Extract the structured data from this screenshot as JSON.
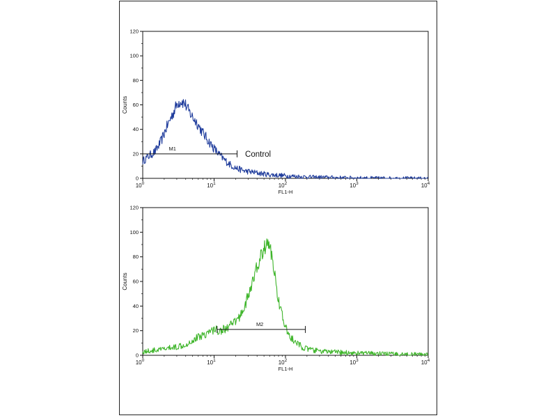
{
  "chart_data": [
    {
      "type": "line",
      "title": "",
      "xlabel": "FL1-H",
      "ylabel": "Counts",
      "x_scale": "log",
      "xlim": [
        1,
        10000
      ],
      "ylim": [
        0,
        120
      ],
      "x_tick_labels": [
        {
          "value": 1,
          "base": "10",
          "exp": "0"
        },
        {
          "value": 10,
          "base": "10",
          "exp": "1"
        },
        {
          "value": 100,
          "base": "10",
          "exp": "2"
        },
        {
          "value": 1000,
          "base": "10",
          "exp": "3"
        },
        {
          "value": 10000,
          "base": "10",
          "exp": "4"
        }
      ],
      "y_ticks": [
        0,
        20,
        40,
        60,
        80,
        100,
        120
      ],
      "grid": false,
      "legend": "none",
      "color": "#1f3c9c",
      "series": [
        {
          "name": "Control",
          "x": [
            1,
            1.2,
            1.5,
            1.8,
            2.1,
            2.5,
            2.8,
            3.1,
            3.5,
            3.9,
            4.3,
            5,
            5.8,
            6.8,
            8,
            9.5,
            11.5,
            14,
            17,
            21,
            27,
            35,
            45,
            60,
            80,
            110,
            150,
            220,
            350,
            600,
            1000,
            2000,
            4000,
            10000
          ],
          "y": [
            14,
            18,
            22,
            30,
            40,
            50,
            56,
            62,
            63,
            61,
            56,
            50,
            45,
            38,
            32,
            26,
            20,
            15,
            11,
            8,
            6,
            5,
            4,
            3,
            2.5,
            2,
            1.5,
            1,
            0.8,
            0.5,
            0.3,
            0.2,
            0.1,
            0
          ]
        }
      ],
      "annotations": [
        {
          "label": "M1",
          "x_start": 1,
          "x_end": 21,
          "y": 20
        },
        {
          "label": "Control",
          "x": 26,
          "y": 20
        }
      ]
    },
    {
      "type": "line",
      "title": "",
      "xlabel": "FL1-H",
      "ylabel": "Counts",
      "x_scale": "log",
      "xlim": [
        1,
        10000
      ],
      "ylim": [
        0,
        120
      ],
      "x_tick_labels": [
        {
          "value": 1,
          "base": "10",
          "exp": "0"
        },
        {
          "value": 10,
          "base": "10",
          "exp": "1"
        },
        {
          "value": 100,
          "base": "10",
          "exp": "2"
        },
        {
          "value": 1000,
          "base": "10",
          "exp": "3"
        },
        {
          "value": 10000,
          "base": "10",
          "exp": "4"
        }
      ],
      "y_ticks": [
        0,
        20,
        40,
        60,
        80,
        100,
        120
      ],
      "grid": false,
      "legend": "none",
      "color": "#3fb52b",
      "series": [
        {
          "name": "",
          "x": [
            1,
            1.5,
            2,
            3,
            4,
            5,
            6,
            8,
            10,
            12,
            15,
            18,
            22,
            26,
            30,
            35,
            40,
            45,
            50,
            55,
            60,
            66,
            72,
            80,
            90,
            100,
            120,
            140,
            170,
            200,
            250,
            350,
            500,
            800,
            1500,
            3000,
            10000
          ],
          "y": [
            3,
            4,
            5,
            7,
            9,
            12,
            15,
            18,
            21,
            20,
            22,
            25,
            30,
            38,
            48,
            60,
            72,
            80,
            86,
            92,
            88,
            78,
            62,
            45,
            32,
            22,
            14,
            10,
            7,
            5,
            4,
            3,
            2.5,
            2,
            1.5,
            1,
            0.5
          ]
        }
      ],
      "annotations": [
        {
          "label": "M2",
          "x_start": 11,
          "x_end": 190,
          "y": 21
        }
      ]
    }
  ]
}
